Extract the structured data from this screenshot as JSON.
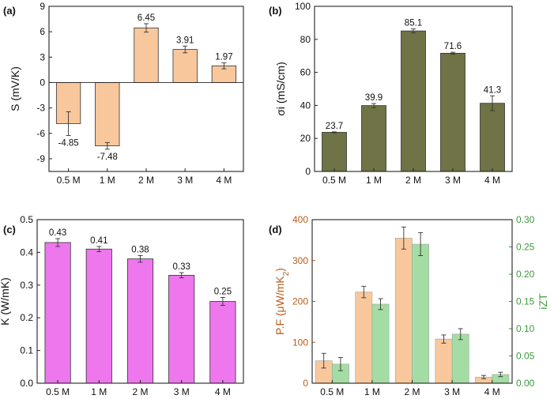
{
  "chart_data": [
    {
      "panel": "(a)",
      "type": "bar",
      "title": "",
      "xlabel": "",
      "ylabel": "S (mV/K)",
      "categories": [
        "0.5 M",
        "1 M",
        "2 M",
        "3 M",
        "4 M"
      ],
      "values": [
        -4.85,
        -7.48,
        6.45,
        3.91,
        1.97
      ],
      "errors": [
        1.4,
        0.4,
        0.5,
        0.4,
        0.35
      ],
      "value_labels": [
        "-4.85",
        "-7.48",
        "6.45",
        "3.91",
        "1.97"
      ],
      "ylim": [
        -10.5,
        9
      ],
      "yticks": [
        -9,
        -6,
        -3,
        0,
        3,
        6,
        9
      ],
      "ytick_labels": [
        "-9",
        "-6",
        "-3",
        "0",
        "3",
        "6",
        "9"
      ],
      "bar_color": "#f8c89c",
      "grid": false
    },
    {
      "panel": "(b)",
      "type": "bar",
      "title": "",
      "xlabel": "",
      "ylabel": "σi (mS/cm)",
      "categories": [
        "0.5 M",
        "1 M",
        "2 M",
        "3 M",
        "4 M"
      ],
      "values": [
        23.7,
        39.9,
        85.1,
        71.6,
        41.3
      ],
      "errors": [
        0.3,
        1.2,
        1.2,
        0.6,
        4.5
      ],
      "value_labels": [
        "23.7",
        "39.9",
        "85.1",
        "71.6",
        "41.3"
      ],
      "ylim": [
        0,
        100
      ],
      "yticks": [
        0,
        20,
        40,
        60,
        80,
        100
      ],
      "ytick_labels": [
        "0",
        "20",
        "40",
        "60",
        "80",
        "100"
      ],
      "bar_color": "#6f7345",
      "grid": false
    },
    {
      "panel": "(c)",
      "type": "bar",
      "title": "",
      "xlabel": "",
      "ylabel": "K (W/mK)",
      "categories": [
        "0.5 M",
        "1 M",
        "2 M",
        "3 M",
        "4 M"
      ],
      "values": [
        0.43,
        0.41,
        0.38,
        0.33,
        0.25
      ],
      "errors": [
        0.012,
        0.008,
        0.01,
        0.008,
        0.012
      ],
      "value_labels": [
        "0.43",
        "0.41",
        "0.38",
        "0.33",
        "0.25"
      ],
      "ylim": [
        0,
        0.5
      ],
      "yticks": [
        0,
        0.1,
        0.2,
        0.3,
        0.4,
        0.5
      ],
      "ytick_labels": [
        "0.0",
        "0.1",
        "0.2",
        "0.3",
        "0.4",
        "0.5"
      ],
      "bar_color": "#ee77ee",
      "grid": false
    },
    {
      "panel": "(d)",
      "type": "bar",
      "title": "",
      "xlabel": "",
      "categories": [
        "0.5 M",
        "1 M",
        "2 M",
        "3 M",
        "4 M"
      ],
      "ylabel_left": "P.F (μW/mK",
      "ylabel_left_sub": "2",
      "ylabel_left_close": ")",
      "ylabel_right": "iZT",
      "left_color": "#b85c1a",
      "right_color": "#3a9a3a",
      "ylim_left": [
        0,
        400
      ],
      "yticks_left": [
        0,
        100,
        200,
        300,
        400
      ],
      "ytick_labels_left": [
        "0",
        "100",
        "200",
        "300",
        "400"
      ],
      "ylim_right": [
        0,
        0.3
      ],
      "yticks_right": [
        0,
        0.05,
        0.1,
        0.15,
        0.2,
        0.25,
        0.3
      ],
      "ytick_labels_right": [
        "0.00",
        "0.05",
        "0.10",
        "0.15",
        "0.20",
        "0.25",
        "0.30"
      ],
      "series": [
        {
          "name": "P.F",
          "axis": "left",
          "values": [
            55,
            223,
            355,
            108,
            15
          ],
          "errors": [
            18,
            14,
            27,
            10,
            4
          ],
          "color": "#f8c89c"
        },
        {
          "name": "iZT",
          "axis": "right",
          "values": [
            0.035,
            0.145,
            0.255,
            0.09,
            0.016
          ],
          "errors": [
            0.012,
            0.01,
            0.021,
            0.01,
            0.004
          ],
          "color": "#a4dda4"
        }
      ],
      "grid": false
    }
  ]
}
